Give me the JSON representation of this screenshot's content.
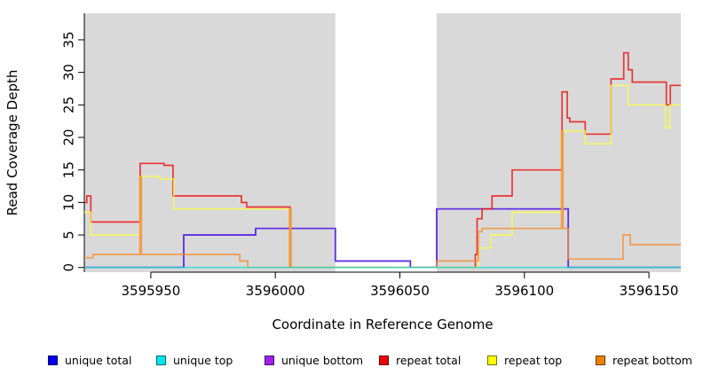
{
  "chart_data": {
    "type": "line",
    "subtype": "step-coverage-plot",
    "title": "",
    "xlabel": "Coordinate in Reference Genome",
    "ylabel": "Read Coverage Depth",
    "x_ticks": [
      3595950,
      3596000,
      3596050,
      3596100,
      3596150
    ],
    "y_ticks": [
      0,
      5,
      10,
      15,
      20,
      25,
      30,
      35
    ],
    "x_range": [
      3595923.3,
      3596162.8
    ],
    "y_range": [
      -0.72,
      39.08
    ],
    "panel_bg": "#d9d9d9",
    "page_bg": "#ffffff",
    "gap_region": {
      "x0": 3596024.1,
      "x1": 3596064.8,
      "color": "#ffffff"
    },
    "grid": false,
    "legend_position": "bottom",
    "axis_color": "#000000",
    "series": [
      {
        "name": "unique total",
        "color": "#1d1de8",
        "opacity": 0.85,
        "points": [
          [
            3595923.3,
            0
          ],
          [
            3595963.2,
            5
          ],
          [
            3595992.1,
            6
          ],
          [
            3596024.1,
            1
          ],
          [
            3596054.2,
            0
          ],
          [
            3596064.8,
            9
          ],
          [
            3596117.6,
            0
          ],
          [
            3596162.8,
            0
          ]
        ]
      },
      {
        "name": "unique bottom",
        "color": "#6d2ce0",
        "opacity": 0.85,
        "points": [
          [
            3595923.3,
            0
          ],
          [
            3595963.2,
            5
          ],
          [
            3595992.1,
            6
          ],
          [
            3596024.1,
            1
          ],
          [
            3596054.2,
            0
          ],
          [
            3596064.8,
            9
          ],
          [
            3596117.6,
            0
          ],
          [
            3596162.8,
            0
          ]
        ]
      },
      {
        "name": "repeat total",
        "color": "#ee1111",
        "opacity": 0.82,
        "points": [
          [
            3595923.3,
            10
          ],
          [
            3595924.3,
            11
          ],
          [
            3595925.9,
            7
          ],
          [
            3595945.7,
            16
          ],
          [
            3595955.3,
            15.7
          ],
          [
            3595958.9,
            11
          ],
          [
            3595986.4,
            10
          ],
          [
            3595988.5,
            9.3
          ],
          [
            3596005.9,
            0
          ],
          [
            3596080.3,
            2
          ],
          [
            3596081,
            7.5
          ],
          [
            3596083,
            9
          ],
          [
            3596087,
            11
          ],
          [
            3596095.1,
            15
          ],
          [
            3596115.1,
            27
          ],
          [
            3596117.2,
            23
          ],
          [
            3596118.2,
            22.4
          ],
          [
            3596124.4,
            20.5
          ],
          [
            3596134.8,
            29
          ],
          [
            3596139.9,
            33
          ],
          [
            3596141.7,
            30.4
          ],
          [
            3596143.3,
            28.5
          ],
          [
            3596157,
            25
          ],
          [
            3596158.6,
            28
          ],
          [
            3596162.8,
            28
          ]
        ]
      },
      {
        "name": "repeat top",
        "color": "#ffff3c",
        "opacity": 0.72,
        "points": [
          [
            3595923.3,
            8.5
          ],
          [
            3595925.9,
            5
          ],
          [
            3595945.7,
            14
          ],
          [
            3595953.6,
            13.6
          ],
          [
            3595959.2,
            9
          ],
          [
            3596005.9,
            0
          ],
          [
            3596081.6,
            3
          ],
          [
            3596086.6,
            5
          ],
          [
            3596095.1,
            8.5
          ],
          [
            3596115.1,
            21
          ],
          [
            3596124.4,
            19
          ],
          [
            3596134.8,
            28
          ],
          [
            3596141.7,
            25
          ],
          [
            3596156.6,
            21.5
          ],
          [
            3596158.4,
            25
          ],
          [
            3596162.8,
            25
          ]
        ]
      },
      {
        "name": "repeat bottom",
        "color": "#f58d2d",
        "opacity": 0.8,
        "points": [
          [
            3595923.3,
            1.5
          ],
          [
            3595926.8,
            2
          ],
          [
            3595945.6,
            14
          ],
          [
            3595946.2,
            2
          ],
          [
            3595985.7,
            1
          ],
          [
            3595988.9,
            0
          ],
          [
            3596005.7,
            9
          ],
          [
            3596006.3,
            0
          ],
          [
            3596064.8,
            1
          ],
          [
            3596081.5,
            5.5
          ],
          [
            3596083,
            6
          ],
          [
            3596114.9,
            21
          ],
          [
            3596115.5,
            6
          ],
          [
            3596117.6,
            1.3
          ],
          [
            3596139.6,
            5
          ],
          [
            3596142.5,
            3.5
          ],
          [
            3596162.8,
            3.5
          ]
        ]
      },
      {
        "name": "unique top",
        "color": "#21dcd2",
        "opacity": 0.8,
        "points": [
          [
            3595923.3,
            0
          ],
          [
            3596162.8,
            0
          ]
        ]
      }
    ],
    "legend": [
      {
        "label": "unique total",
        "swatch": "#0000ee"
      },
      {
        "label": "unique top",
        "swatch": "#00e5ee"
      },
      {
        "label": "unique bottom",
        "swatch": "#a020f0"
      },
      {
        "label": "repeat total",
        "swatch": "#ee0000"
      },
      {
        "label": "repeat top",
        "swatch": "#ffff00"
      },
      {
        "label": "repeat bottom",
        "swatch": "#ee8000"
      }
    ]
  }
}
